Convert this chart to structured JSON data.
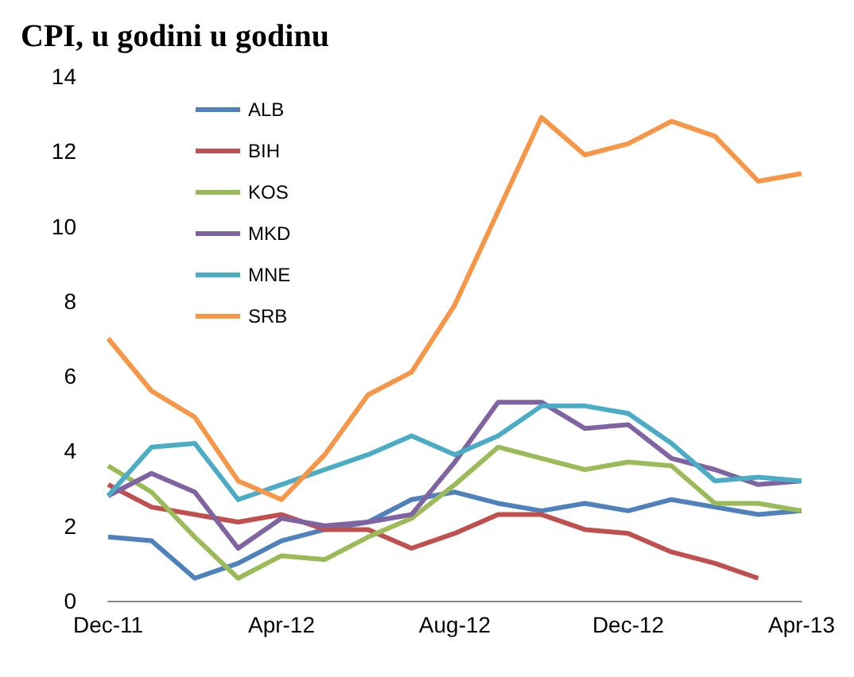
{
  "chart_data": {
    "type": "line",
    "title": "CPI, u godini u godinu",
    "categories": [
      "Dec-11",
      null,
      null,
      null,
      "Apr-12",
      null,
      null,
      null,
      "Aug-12",
      null,
      null,
      null,
      "Dec-12",
      null,
      null,
      null,
      "Apr-13"
    ],
    "series": [
      {
        "name": "ALB",
        "color": "#4f81bd",
        "values": [
          1.7,
          1.6,
          0.6,
          1.0,
          1.6,
          1.9,
          2.1,
          2.7,
          2.9,
          2.6,
          2.4,
          2.6,
          2.4,
          2.7,
          2.5,
          2.3,
          2.4
        ]
      },
      {
        "name": "BIH",
        "color": "#c0504d",
        "values": [
          3.1,
          2.5,
          2.3,
          2.1,
          2.3,
          1.9,
          1.9,
          1.4,
          1.8,
          2.3,
          2.3,
          1.9,
          1.8,
          1.3,
          1.0,
          0.6,
          null
        ]
      },
      {
        "name": "KOS",
        "color": "#9bbb59",
        "values": [
          3.6,
          2.9,
          1.7,
          0.6,
          1.2,
          1.1,
          1.7,
          2.2,
          3.1,
          4.1,
          3.8,
          3.5,
          3.7,
          3.6,
          2.6,
          2.6,
          2.4
        ]
      },
      {
        "name": "MKD",
        "color": "#8064a2",
        "values": [
          2.8,
          3.4,
          2.9,
          1.4,
          2.2,
          2.0,
          2.1,
          2.3,
          3.7,
          5.3,
          5.3,
          4.6,
          4.7,
          3.8,
          3.5,
          3.1,
          3.2
        ]
      },
      {
        "name": "MNE",
        "color": "#4bacc6",
        "values": [
          2.8,
          4.1,
          4.2,
          2.7,
          3.1,
          3.5,
          3.9,
          4.4,
          3.9,
          4.4,
          5.2,
          5.2,
          5.0,
          4.2,
          3.2,
          3.3,
          3.2
        ]
      },
      {
        "name": "SRB",
        "color": "#f79646",
        "values": [
          7.0,
          5.6,
          4.9,
          3.2,
          2.7,
          3.9,
          5.5,
          6.1,
          7.9,
          10.4,
          12.9,
          11.9,
          12.2,
          12.8,
          12.4,
          11.2,
          11.4
        ]
      }
    ],
    "ylim": [
      0,
      14
    ],
    "yticks": [
      0,
      2,
      4,
      6,
      8,
      10,
      12,
      14
    ],
    "grid": false,
    "legend": "top left",
    "marker": "none",
    "line_style": "solid"
  }
}
